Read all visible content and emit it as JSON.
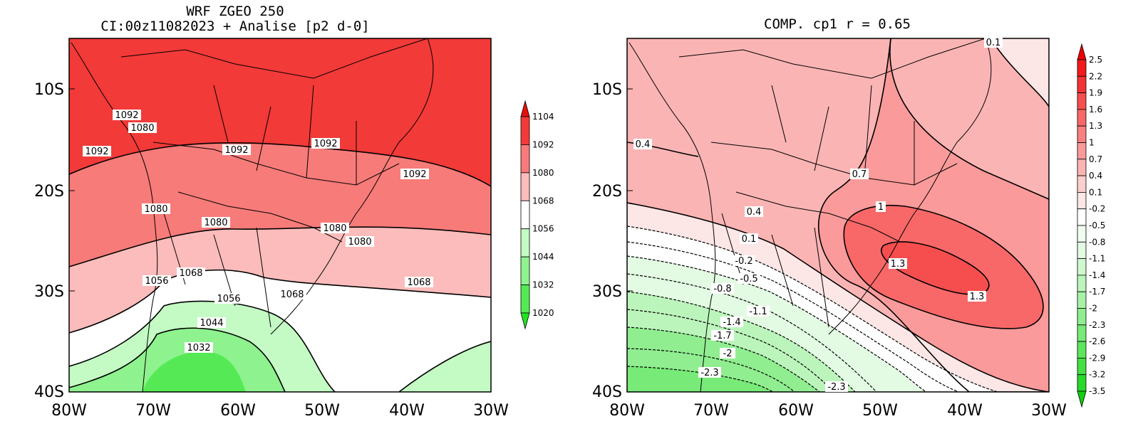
{
  "left_map": {
    "title_line1": "WRF ZGEO 250",
    "title_line2": "CI:00z11082023 + Analise  [p2 d-0]",
    "lat_ticks": [
      "10S",
      "20S",
      "30S",
      "40S"
    ],
    "lon_ticks": [
      "80W",
      "70W",
      "60W",
      "50W",
      "40W",
      "30W"
    ],
    "contour_labels": [
      "1092",
      "1080",
      "1092",
      "1092",
      "1092",
      "1092",
      "1080",
      "1080",
      "1080",
      "1080",
      "1068",
      "1056",
      "1056",
      "1068",
      "1068",
      "1044",
      "1032"
    ],
    "colorbar": {
      "labels": [
        "1104",
        "1092",
        "1080",
        "1068",
        "1056",
        "1044",
        "1032",
        "1020"
      ],
      "colors": [
        "#e8100e",
        "#f23a38",
        "#f77b79",
        "#fbbcbb",
        "#ffffff",
        "#c4fbc4",
        "#8ef28e",
        "#55ea55",
        "#1ee61e"
      ]
    }
  },
  "right_map": {
    "title": "COMP. cp1  r =  0.65",
    "lat_ticks": [
      "10S",
      "20S",
      "30S",
      "40S"
    ],
    "lon_ticks": [
      "80W",
      "70W",
      "60W",
      "50W",
      "40W",
      "30W"
    ],
    "contour_labels": [
      "0.1",
      "0.4",
      "0.7",
      "0.4",
      "1",
      "0.1",
      "1.3",
      "-0.2",
      "-0.5",
      "-0.8",
      "1.3",
      "-1.1",
      "-1.4",
      "-1.7",
      "-2",
      "-2.3",
      "-2.3"
    ],
    "colorbar": {
      "labels": [
        "2.5",
        "2.2",
        "1.9",
        "1.6",
        "1.3",
        "1",
        "0.7",
        "0.4",
        "0.1",
        "-0.2",
        "-0.5",
        "-0.8",
        "-1.1",
        "-1.4",
        "-1.7",
        "-2",
        "-2.3",
        "-2.6",
        "-2.9",
        "-3.2",
        "-3.5"
      ],
      "colors": [
        "#f00000",
        "#f21a1a",
        "#f43434",
        "#f64e4e",
        "#f86868",
        "#f98080",
        "#fa9a9a",
        "#fbb4b4",
        "#fdcece",
        "#fde6e6",
        "#ffffff",
        "#f1fdf1",
        "#e3fbe3",
        "#d0f8d0",
        "#bcf5bc",
        "#a8f2a8",
        "#90ee90",
        "#78ea78",
        "#5ee55e",
        "#44e044",
        "#2ad82a",
        "#10d010"
      ]
    }
  }
}
